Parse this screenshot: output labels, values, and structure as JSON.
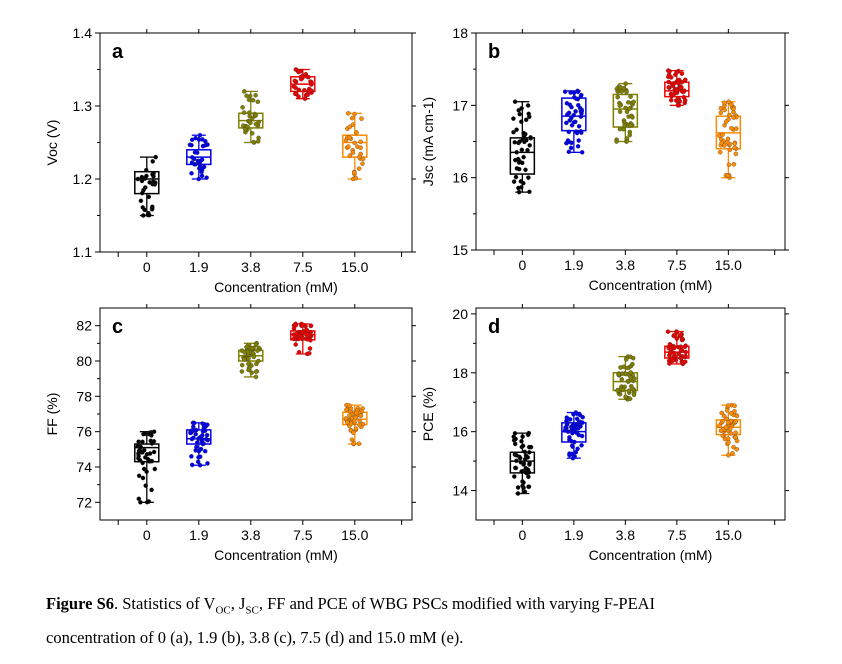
{
  "chart_data": [
    {
      "type": "box",
      "panel_letter": "a",
      "categories": [
        "0",
        "1.9",
        "3.8",
        "7.5",
        "15.0"
      ],
      "xlabel": "Concentration (mM)",
      "ylabel": "Voc (V)",
      "ylim": [
        1.1,
        1.4
      ],
      "yticks": [
        "1.1",
        "1.2",
        "1.3",
        "1.4"
      ],
      "boxes": [
        {
          "min": 1.15,
          "q1": 1.18,
          "median": 1.2,
          "q3": 1.21,
          "max": 1.23,
          "n": 32
        },
        {
          "min": 1.2,
          "q1": 1.22,
          "median": 1.23,
          "q3": 1.24,
          "max": 1.26,
          "n": 32
        },
        {
          "min": 1.25,
          "q1": 1.27,
          "median": 1.28,
          "q3": 1.29,
          "max": 1.32,
          "n": 32
        },
        {
          "min": 1.31,
          "q1": 1.32,
          "median": 1.33,
          "q3": 1.34,
          "max": 1.35,
          "n": 32
        },
        {
          "min": 1.2,
          "q1": 1.23,
          "median": 1.25,
          "q3": 1.26,
          "max": 1.29,
          "n": 32
        }
      ]
    },
    {
      "type": "box",
      "panel_letter": "b",
      "categories": [
        "0",
        "1.9",
        "3.8",
        "7.5",
        "15.0"
      ],
      "xlabel": "Concentration (mM)",
      "ylabel": "Jsc (mA cm-1)",
      "ylim": [
        15,
        18
      ],
      "yticks": [
        "15",
        "16",
        "17",
        "18"
      ],
      "boxes": [
        {
          "min": 15.8,
          "q1": 16.05,
          "median": 16.35,
          "q3": 16.55,
          "max": 17.05,
          "n": 45
        },
        {
          "min": 16.35,
          "q1": 16.65,
          "median": 16.85,
          "q3": 17.1,
          "max": 17.2,
          "n": 45
        },
        {
          "min": 16.5,
          "q1": 16.7,
          "median": 16.95,
          "q3": 17.15,
          "max": 17.3,
          "n": 45
        },
        {
          "min": 17.0,
          "q1": 17.12,
          "median": 17.2,
          "q3": 17.32,
          "max": 17.48,
          "n": 45
        },
        {
          "min": 16.0,
          "q1": 16.4,
          "median": 16.62,
          "q3": 16.85,
          "max": 17.05,
          "n": 45
        }
      ]
    },
    {
      "type": "box",
      "panel_letter": "c",
      "categories": [
        "0",
        "1.9",
        "3.8",
        "7.5",
        "15.0"
      ],
      "xlabel": "Concentration (mM)",
      "ylabel": "FF (%)",
      "ylim": [
        71,
        83
      ],
      "yticks": [
        "72",
        "74",
        "76",
        "78",
        "80",
        "82"
      ],
      "boxes": [
        {
          "min": 72.0,
          "q1": 74.3,
          "median": 75.1,
          "q3": 75.3,
          "max": 76.0,
          "n": 45
        },
        {
          "min": 74.1,
          "q1": 75.3,
          "median": 75.6,
          "q3": 76.1,
          "max": 76.5,
          "n": 45
        },
        {
          "min": 79.1,
          "q1": 80.0,
          "median": 80.3,
          "q3": 80.6,
          "max": 81.0,
          "n": 45
        },
        {
          "min": 80.4,
          "q1": 81.2,
          "median": 81.5,
          "q3": 81.7,
          "max": 82.1,
          "n": 45
        },
        {
          "min": 75.3,
          "q1": 76.4,
          "median": 76.7,
          "q3": 77.1,
          "max": 77.5,
          "n": 45
        }
      ]
    },
    {
      "type": "box",
      "panel_letter": "d",
      "categories": [
        "0",
        "1.9",
        "3.8",
        "7.5",
        "15.0"
      ],
      "xlabel": "Concentration (mM)",
      "ylabel": "PCE (%)",
      "ylim": [
        13,
        20.2
      ],
      "yticks": [
        "14",
        "16",
        "18",
        "20"
      ],
      "boxes": [
        {
          "min": 13.9,
          "q1": 14.6,
          "median": 15.0,
          "q3": 15.3,
          "max": 15.95,
          "n": 50
        },
        {
          "min": 15.1,
          "q1": 15.65,
          "median": 16.0,
          "q3": 16.3,
          "max": 16.65,
          "n": 50
        },
        {
          "min": 17.1,
          "q1": 17.4,
          "median": 17.7,
          "q3": 18.0,
          "max": 18.55,
          "n": 50
        },
        {
          "min": 18.3,
          "q1": 18.5,
          "median": 18.7,
          "q3": 18.9,
          "max": 19.4,
          "n": 50
        },
        {
          "min": 15.2,
          "q1": 15.9,
          "median": 16.15,
          "q3": 16.4,
          "max": 16.9,
          "n": 50
        }
      ]
    }
  ],
  "series_colors": [
    "#000000",
    "#0000ee",
    "#808000",
    "#ee0000",
    "#ff8c00"
  ],
  "caption": {
    "label": "Figure S6",
    "line1": ". Statistics of V",
    "voc_sub": "OC",
    "mid1": ", J",
    "jsc_sub": "SC",
    "mid2": ", FF and PCE of WBG PSCs modified with varying F-PEAI",
    "line2": "concentration of 0 (a), 1.9 (b), 3.8 (c), 7.5 (d) and 15.0 mM (e)."
  }
}
